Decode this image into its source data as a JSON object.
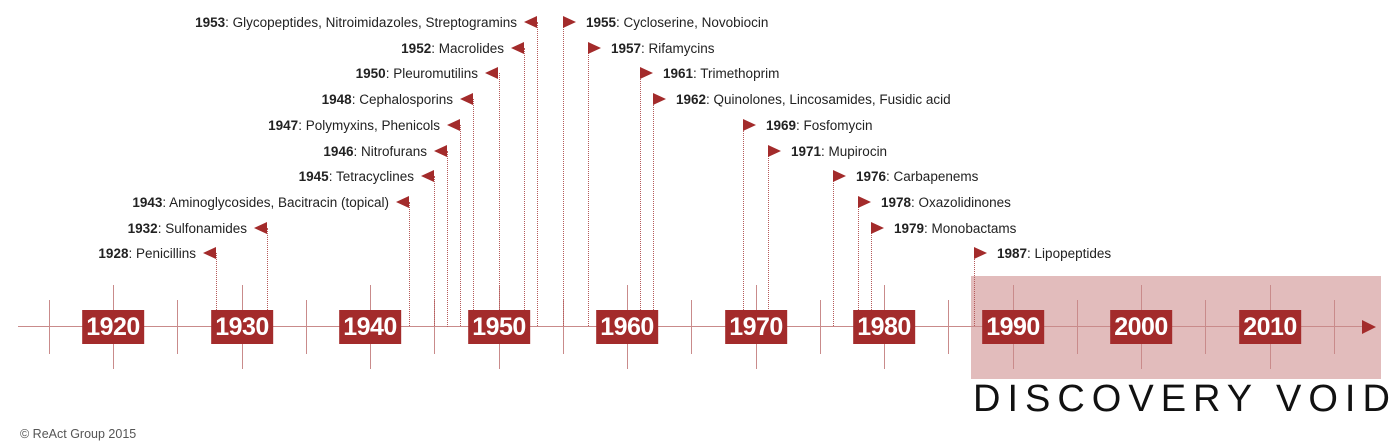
{
  "decades": [
    "1920",
    "1930",
    "1940",
    "1950",
    "1960",
    "1970",
    "1980",
    "1990",
    "2000",
    "2010"
  ],
  "events": [
    {
      "year": "1928",
      "label": ": Penicillins",
      "side": "left"
    },
    {
      "year": "1932",
      "label": ": Sulfonamides",
      "side": "left"
    },
    {
      "year": "1943",
      "label": ": Aminoglycosides, Bacitracin (topical)",
      "side": "left"
    },
    {
      "year": "1945",
      "label": ": Tetracyclines",
      "side": "left"
    },
    {
      "year": "1946",
      "label": ": Nitrofurans",
      "side": "left"
    },
    {
      "year": "1947",
      "label": ": Polymyxins, Phenicols",
      "side": "left"
    },
    {
      "year": "1948",
      "label": ": Cephalosporins",
      "side": "left"
    },
    {
      "year": "1950",
      "label": ": Pleuromutilins",
      "side": "left"
    },
    {
      "year": "1952",
      "label": ": Macrolides",
      "side": "left"
    },
    {
      "year": "1953",
      "label": ": Glycopeptides, Nitroimidazoles, Streptogramins",
      "side": "left"
    },
    {
      "year": "1955",
      "label": ": Cycloserine, Novobiocin",
      "side": "right"
    },
    {
      "year": "1957",
      "label": ": Rifamycins",
      "side": "right"
    },
    {
      "year": "1961",
      "label": ": Trimethoprim",
      "side": "right"
    },
    {
      "year": "1962",
      "label": ": Quinolones, Lincosamides, Fusidic acid",
      "side": "right"
    },
    {
      "year": "1969",
      "label": ": Fosfomycin",
      "side": "right"
    },
    {
      "year": "1971",
      "label": ": Mupirocin",
      "side": "right"
    },
    {
      "year": "1976",
      "label": ": Carbapenems",
      "side": "right"
    },
    {
      "year": "1978",
      "label": ": Oxazolidinones",
      "side": "right"
    },
    {
      "year": "1979",
      "label": ": Monobactams",
      "side": "right"
    },
    {
      "year": "1987",
      "label": ": Lipopeptides",
      "side": "right"
    }
  ],
  "void_label": "DISCOVERY VOID",
  "credit": "© ReAct Group 2015",
  "colors": {
    "accent": "#a32b2b",
    "void_band": "#e2bcbc",
    "line": "#c98b8b"
  }
}
